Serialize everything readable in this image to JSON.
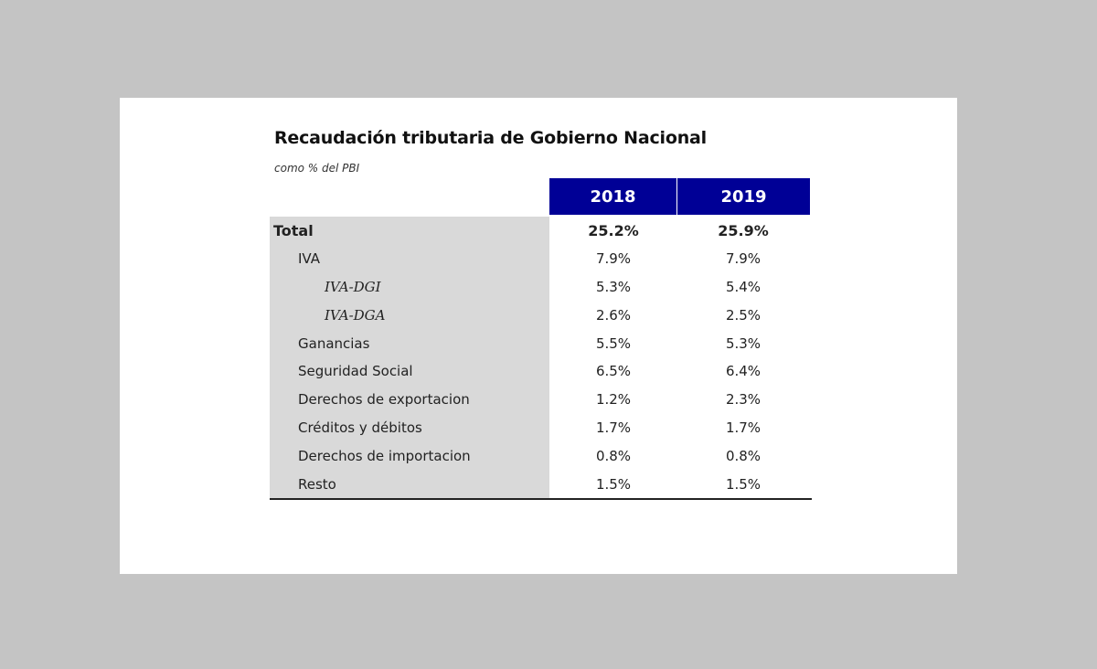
{
  "document": {
    "title": "Recaudación tributaria de Gobierno Nacional",
    "subtitle": "como % del PBI"
  },
  "table": {
    "columns": [
      "2018",
      "2019"
    ],
    "rows": [
      {
        "label": "Total",
        "v2018": "25.2%",
        "v2019": "25.9%",
        "level": 0
      },
      {
        "label": "IVA",
        "v2018": "7.9%",
        "v2019": "7.9%",
        "level": 1
      },
      {
        "label": "IVA-DGI",
        "v2018": "5.3%",
        "v2019": "5.4%",
        "level": 2
      },
      {
        "label": "IVA-DGA",
        "v2018": "2.6%",
        "v2019": "2.5%",
        "level": 2
      },
      {
        "label": "Ganancias",
        "v2018": "5.5%",
        "v2019": "5.3%",
        "level": 1
      },
      {
        "label": "Seguridad Social",
        "v2018": "6.5%",
        "v2019": "6.4%",
        "level": 1
      },
      {
        "label": "Derechos de exportacion",
        "v2018": "1.2%",
        "v2019": "2.3%",
        "level": 1
      },
      {
        "label": "Créditos y débitos",
        "v2018": "1.7%",
        "v2019": "1.7%",
        "level": 1
      },
      {
        "label": "Derechos de importacion",
        "v2018": "0.8%",
        "v2019": "0.8%",
        "level": 1
      },
      {
        "label": "Resto",
        "v2018": "1.5%",
        "v2019": "1.5%",
        "level": 1
      }
    ]
  },
  "colors": {
    "header_bg": "#000096",
    "label_column_bg": "#d9d9d9",
    "page_bg": "#c4c4c4"
  }
}
